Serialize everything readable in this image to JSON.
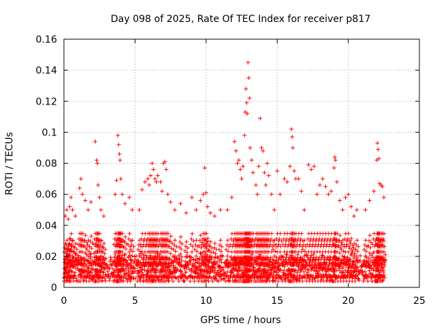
{
  "chart_data": {
    "type": "scatter",
    "title": "Day 098 of 2025, Rate Of TEC Index for receiver p817",
    "xlabel": "GPS time / hours",
    "ylabel": "ROTI / TECUs",
    "xlim": [
      0,
      25
    ],
    "ylim": [
      0,
      0.16
    ],
    "xticks": [
      "0",
      "5",
      "10",
      "15",
      "20",
      "25"
    ],
    "yticks": [
      "0",
      "0.02",
      "0.04",
      "0.06",
      "0.08",
      "0.1",
      "0.12",
      "0.14",
      "0.16"
    ],
    "grid": true,
    "marker": "+",
    "color": "#ff0000",
    "series": [
      {
        "points": [
          [
            0.1,
            0.046
          ],
          [
            0.2,
            0.05
          ],
          [
            0.3,
            0.044
          ],
          [
            0.4,
            0.052
          ],
          [
            0.5,
            0.058
          ],
          [
            0.6,
            0.05
          ],
          [
            0.8,
            0.046
          ],
          [
            1.1,
            0.064
          ],
          [
            1.2,
            0.07
          ],
          [
            1.3,
            0.06
          ],
          [
            1.5,
            0.056
          ],
          [
            1.7,
            0.05
          ],
          [
            1.9,
            0.055
          ],
          [
            2.2,
            0.094
          ],
          [
            2.3,
            0.082
          ],
          [
            2.35,
            0.08
          ],
          [
            2.4,
            0.066
          ],
          [
            2.5,
            0.058
          ],
          [
            2.6,
            0.05
          ],
          [
            2.8,
            0.046
          ],
          [
            3.6,
            0.06
          ],
          [
            3.7,
            0.069
          ],
          [
            3.8,
            0.098
          ],
          [
            3.85,
            0.092
          ],
          [
            3.9,
            0.086
          ],
          [
            3.95,
            0.082
          ],
          [
            4.0,
            0.07
          ],
          [
            4.1,
            0.06
          ],
          [
            4.3,
            0.054
          ],
          [
            4.6,
            0.058
          ],
          [
            4.8,
            0.05
          ],
          [
            5.3,
            0.05
          ],
          [
            5.5,
            0.063
          ],
          [
            5.7,
            0.068
          ],
          [
            5.9,
            0.07
          ],
          [
            6.0,
            0.066
          ],
          [
            6.1,
            0.072
          ],
          [
            6.2,
            0.08
          ],
          [
            6.3,
            0.076
          ],
          [
            6.4,
            0.07
          ],
          [
            6.5,
            0.068
          ],
          [
            6.6,
            0.072
          ],
          [
            6.8,
            0.068
          ],
          [
            6.9,
            0.062
          ],
          [
            7.0,
            0.08
          ],
          [
            7.1,
            0.081
          ],
          [
            7.2,
            0.076
          ],
          [
            7.3,
            0.06
          ],
          [
            7.5,
            0.055
          ],
          [
            7.8,
            0.05
          ],
          [
            8.2,
            0.054
          ],
          [
            8.6,
            0.048
          ],
          [
            9.0,
            0.058
          ],
          [
            9.3,
            0.05
          ],
          [
            9.6,
            0.056
          ],
          [
            9.8,
            0.06
          ],
          [
            9.9,
            0.077
          ],
          [
            10.0,
            0.061
          ],
          [
            10.1,
            0.052
          ],
          [
            10.3,
            0.048
          ],
          [
            10.6,
            0.046
          ],
          [
            11.0,
            0.05
          ],
          [
            11.5,
            0.05
          ],
          [
            11.8,
            0.058
          ],
          [
            12.0,
            0.094
          ],
          [
            12.1,
            0.088
          ],
          [
            12.2,
            0.08
          ],
          [
            12.3,
            0.082
          ],
          [
            12.4,
            0.076
          ],
          [
            12.5,
            0.07
          ],
          [
            12.6,
            0.078
          ],
          [
            12.7,
            0.098
          ],
          [
            12.75,
            0.113
          ],
          [
            12.8,
            0.128
          ],
          [
            12.85,
            0.119
          ],
          [
            12.9,
            0.112
          ],
          [
            12.95,
            0.145
          ],
          [
            13.0,
            0.135
          ],
          [
            13.05,
            0.122
          ],
          [
            13.1,
            0.09
          ],
          [
            13.2,
            0.082
          ],
          [
            13.3,
            0.074
          ],
          [
            13.5,
            0.066
          ],
          [
            13.6,
            0.06
          ],
          [
            13.7,
            0.078
          ],
          [
            13.8,
            0.109
          ],
          [
            13.9,
            0.09
          ],
          [
            14.0,
            0.088
          ],
          [
            14.1,
            0.074
          ],
          [
            14.2,
            0.066
          ],
          [
            14.3,
            0.08
          ],
          [
            14.4,
            0.072
          ],
          [
            14.6,
            0.06
          ],
          [
            14.8,
            0.05
          ],
          [
            15.0,
            0.075
          ],
          [
            15.2,
            0.06
          ],
          [
            15.5,
            0.07
          ],
          [
            15.7,
            0.068
          ],
          [
            15.9,
            0.078
          ],
          [
            16.0,
            0.102
          ],
          [
            16.05,
            0.097
          ],
          [
            16.1,
            0.09
          ],
          [
            16.2,
            0.075
          ],
          [
            16.3,
            0.07
          ],
          [
            16.5,
            0.07
          ],
          [
            16.7,
            0.062
          ],
          [
            16.9,
            0.05
          ],
          [
            17.2,
            0.079
          ],
          [
            17.4,
            0.076
          ],
          [
            17.6,
            0.078
          ],
          [
            17.8,
            0.06
          ],
          [
            18.0,
            0.066
          ],
          [
            18.2,
            0.07
          ],
          [
            18.4,
            0.065
          ],
          [
            18.6,
            0.06
          ],
          [
            18.8,
            0.062
          ],
          [
            19.0,
            0.077
          ],
          [
            19.05,
            0.084
          ],
          [
            19.1,
            0.082
          ],
          [
            19.2,
            0.068
          ],
          [
            19.4,
            0.056
          ],
          [
            19.6,
            0.05
          ],
          [
            19.8,
            0.058
          ],
          [
            20.0,
            0.06
          ],
          [
            20.2,
            0.052
          ],
          [
            20.4,
            0.046
          ],
          [
            20.6,
            0.05
          ],
          [
            21.2,
            0.05
          ],
          [
            21.5,
            0.056
          ],
          [
            21.8,
            0.062
          ],
          [
            22.0,
            0.082
          ],
          [
            22.05,
            0.093
          ],
          [
            22.1,
            0.089
          ],
          [
            22.15,
            0.083
          ],
          [
            22.2,
            0.067
          ],
          [
            22.3,
            0.066
          ],
          [
            22.4,
            0.065
          ],
          [
            22.5,
            0.058
          ]
        ]
      }
    ]
  }
}
